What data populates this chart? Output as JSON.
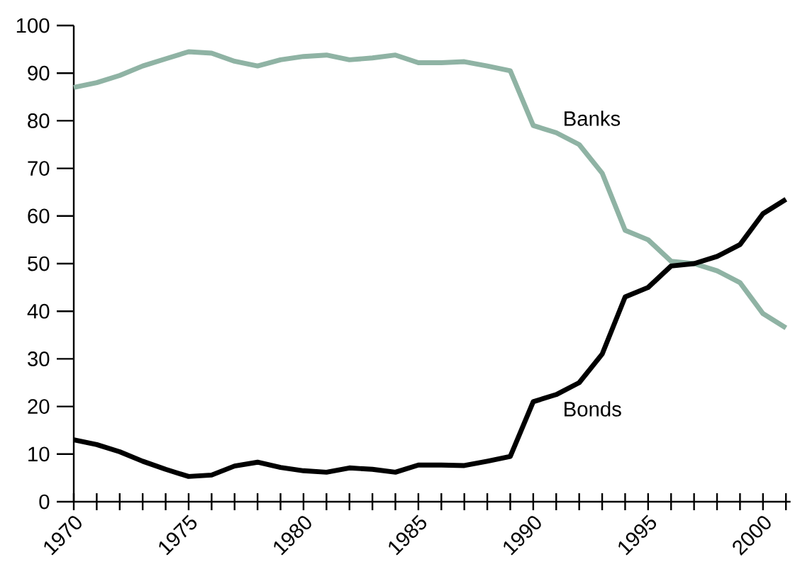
{
  "chart_data": {
    "type": "line",
    "x": [
      1970,
      1971,
      1972,
      1973,
      1974,
      1975,
      1976,
      1977,
      1978,
      1979,
      1980,
      1981,
      1982,
      1983,
      1984,
      1985,
      1986,
      1987,
      1988,
      1989,
      1990,
      1991,
      1992,
      1993,
      1994,
      1995,
      1996,
      1997,
      1998,
      1999,
      2000,
      2001
    ],
    "series": [
      {
        "name": "Banks",
        "color": "#8fb3a4",
        "values": [
          87,
          88,
          89.5,
          91.5,
          93,
          94.5,
          94.2,
          92.5,
          91.5,
          92.8,
          93.5,
          93.8,
          92.8,
          93.2,
          93.8,
          92.2,
          92.2,
          92.4,
          91.5,
          90.5,
          79,
          77.5,
          75,
          69,
          57,
          55,
          50.5,
          50,
          48.5,
          46,
          39.5,
          36.5
        ]
      },
      {
        "name": "Bonds",
        "color": "#000000",
        "values": [
          13,
          12,
          10.5,
          8.5,
          6.8,
          5.3,
          5.6,
          7.5,
          8.3,
          7.2,
          6.5,
          6.2,
          7.1,
          6.8,
          6.2,
          7.7,
          7.7,
          7.6,
          8.5,
          9.5,
          21,
          22.5,
          25,
          31,
          43,
          45,
          49.5,
          50,
          51.5,
          54,
          60.5,
          63.5
        ]
      }
    ],
    "xlim": [
      1970,
      2001.2
    ],
    "ylim": [
      0,
      100
    ],
    "xticks": [
      1970,
      {
        "value": 1971,
        "label": null
      },
      {
        "value": 1972,
        "label": null
      },
      {
        "value": 1973,
        "label": null
      },
      {
        "value": 1974,
        "label": null
      },
      1975,
      {
        "value": 1976,
        "label": null
      },
      {
        "value": 1977,
        "label": null
      },
      {
        "value": 1978,
        "label": null
      },
      {
        "value": 1979,
        "label": null
      },
      1980,
      {
        "value": 1981,
        "label": null
      },
      {
        "value": 1982,
        "label": null
      },
      {
        "value": 1983,
        "label": null
      },
      {
        "value": 1984,
        "label": null
      },
      1985,
      {
        "value": 1986,
        "label": null
      },
      {
        "value": 1987,
        "label": null
      },
      {
        "value": 1988,
        "label": null
      },
      {
        "value": 1989,
        "label": null
      },
      1990,
      {
        "value": 1991,
        "label": null
      },
      {
        "value": 1992,
        "label": null
      },
      {
        "value": 1993,
        "label": null
      },
      {
        "value": 1994,
        "label": null
      },
      1995,
      {
        "value": 1996,
        "label": null
      },
      {
        "value": 1997,
        "label": null
      },
      {
        "value": 1998,
        "label": null
      },
      {
        "value": 1999,
        "label": null
      },
      2000,
      {
        "value": 2001,
        "label": null
      }
    ],
    "yticks": [
      0,
      10,
      20,
      30,
      40,
      50,
      60,
      70,
      80,
      90,
      100
    ],
    "grid": false,
    "marker": "none",
    "line_style": "solid"
  }
}
